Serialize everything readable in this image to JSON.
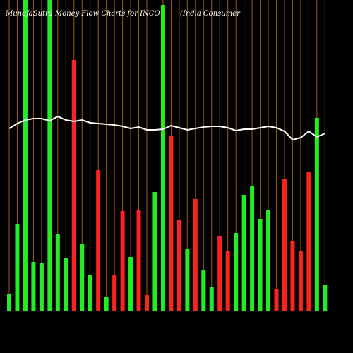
{
  "chart_data": {
    "type": "bar",
    "title": "MunafaSutra Money Flow Charts for INCO",
    "subtitle": "(India Consumer",
    "colors": {
      "up": "#22ee22",
      "down": "#ff2222",
      "line": "#ffffff",
      "guide": "#a05a10"
    },
    "ylim": [
      0,
      440
    ],
    "series": [
      {
        "name": "Money Flow",
        "values": [
          23,
          123,
          440,
          69,
          67,
          440,
          108,
          75,
          355,
          95,
          51,
          199,
          19,
          50,
          141,
          76,
          143,
          22,
          168,
          433,
          247,
          129,
          88,
          158,
          57,
          33,
          106,
          84,
          110,
          164,
          177,
          130,
          142,
          31,
          186,
          98,
          85,
          197,
          273,
          37
        ],
        "direction": [
          "up",
          "up",
          "up",
          "up",
          "up",
          "up",
          "up",
          "up",
          "down",
          "up",
          "up",
          "down",
          "up",
          "down",
          "down",
          "up",
          "down",
          "down",
          "up",
          "up",
          "down",
          "down",
          "up",
          "down",
          "up",
          "up",
          "down",
          "down",
          "up",
          "up",
          "up",
          "up",
          "up",
          "down",
          "down",
          "down",
          "down",
          "down",
          "up",
          "up"
        ]
      },
      {
        "name": "Trend",
        "values": [
          258,
          265,
          270,
          272,
          272,
          269,
          275,
          270,
          268,
          270,
          266,
          265,
          264,
          263,
          261,
          258,
          260,
          256,
          256,
          257,
          262,
          259,
          256,
          258,
          260,
          261,
          261,
          259,
          255,
          257,
          257,
          259,
          261,
          259,
          254,
          242,
          245,
          254,
          246,
          251
        ]
      }
    ]
  }
}
